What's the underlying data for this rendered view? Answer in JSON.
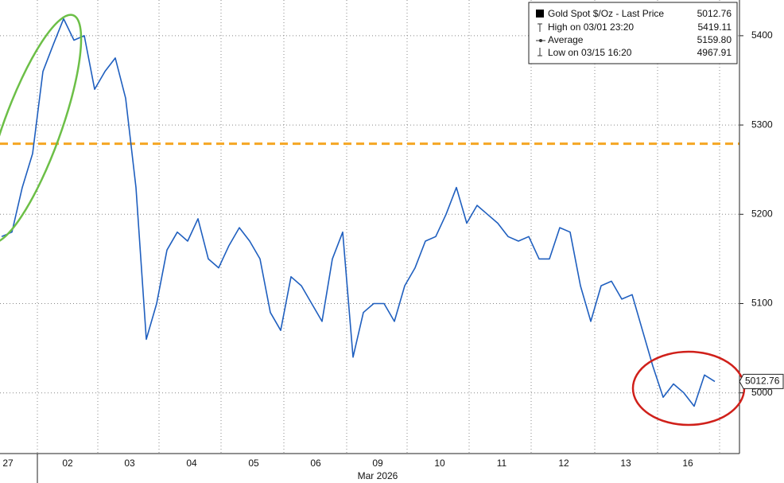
{
  "chart_data": {
    "type": "line",
    "x_label": "Mar 2026",
    "categories": [
      null,
      "27",
      null,
      null,
      null,
      null,
      "02",
      null,
      null,
      null,
      null,
      null,
      "03",
      null,
      null,
      null,
      null,
      null,
      "04",
      null,
      null,
      null,
      null,
      null,
      "05",
      null,
      null,
      null,
      null,
      null,
      "06",
      null,
      null,
      null,
      null,
      null,
      "09",
      null,
      null,
      null,
      null,
      null,
      "10",
      null,
      null,
      null,
      null,
      null,
      "11",
      null,
      null,
      null,
      null,
      null,
      "12",
      null,
      null,
      null,
      null,
      null,
      "13",
      null,
      null,
      null,
      null,
      null,
      "16",
      null,
      null,
      null
    ],
    "series": [
      {
        "name": "Gold Spot $/Oz - Last Price",
        "color": "#1f5fbf",
        "values": [
          5175,
          5180,
          5230,
          5268,
          5360,
          5390,
          5419,
          5395,
          5400,
          5340,
          5360,
          5375,
          5330,
          5230,
          5060,
          5100,
          5160,
          5180,
          5170,
          5195,
          5150,
          5140,
          5165,
          5185,
          5170,
          5150,
          5090,
          5070,
          5130,
          5120,
          5100,
          5080,
          5150,
          5180,
          5040,
          5090,
          5100,
          5100,
          5080,
          5120,
          5140,
          5170,
          5175,
          5200,
          5230,
          5190,
          5210,
          5200,
          5190,
          5175,
          5170,
          5175,
          5150,
          5150,
          5185,
          5180,
          5120,
          5080,
          5120,
          5125,
          5105,
          5110,
          5070,
          5030,
          4995,
          5010,
          5000,
          4985,
          5020,
          5012.76
        ]
      }
    ],
    "ylim": [
      4932,
      5440
    ],
    "yticks": [
      5000,
      5100,
      5200,
      5300,
      5400
    ],
    "grid": true,
    "reference_line": {
      "value": 5279,
      "color": "#f5a623"
    },
    "legend": [
      {
        "label": "Gold Spot $/Oz - Last Price",
        "value": "5012.76"
      },
      {
        "label": "High on 03/01 23:20",
        "value": "5419.11"
      },
      {
        "label": "Average",
        "value": "5159.80"
      },
      {
        "label": "Low on 03/15 16:20",
        "value": "4967.91"
      }
    ]
  }
}
